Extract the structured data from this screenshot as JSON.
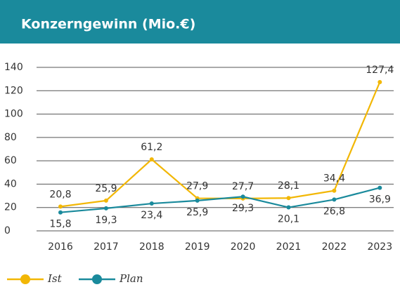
{
  "chart_data": {
    "type": "line",
    "title": "Konzerngewinn (Mio.€)",
    "categories": [
      "2016",
      "2017",
      "2018",
      "2019",
      "2020",
      "2021",
      "2022",
      "2023"
    ],
    "series": [
      {
        "name": "Ist",
        "color": "#f2b705",
        "values": [
          20.8,
          25.9,
          61.2,
          27.9,
          27.7,
          28.1,
          34.4,
          127.4
        ],
        "value_labels": [
          "20,8",
          "25,9",
          "61,2",
          "27,9",
          "27,7",
          "28,1",
          "34,4",
          "127,4"
        ]
      },
      {
        "name": "Plan",
        "color": "#1a8a9c",
        "values": [
          15.8,
          19.3,
          23.4,
          25.9,
          29.3,
          20.1,
          26.8,
          36.9
        ],
        "value_labels": [
          "15,8",
          "19,3",
          "23,4",
          "25,9",
          "29,3",
          "20,1",
          "26,8",
          "36,9"
        ]
      }
    ],
    "ylim": [
      0,
      140
    ],
    "yticks": [
      0,
      20,
      40,
      60,
      80,
      100,
      120,
      140
    ],
    "grid": true,
    "legend": "bottom-left"
  }
}
